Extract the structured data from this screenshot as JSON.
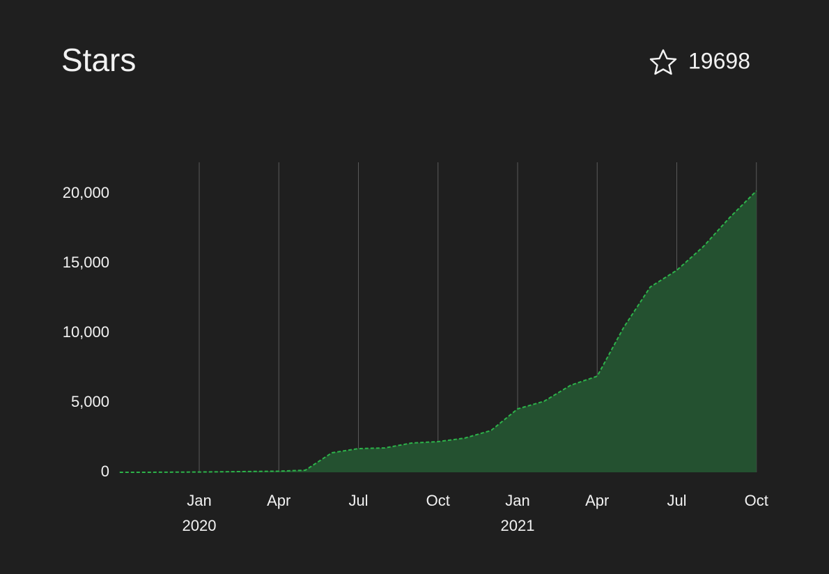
{
  "header": {
    "title": "Stars",
    "count": 19698
  },
  "chart_data": {
    "type": "area",
    "x": [
      "2019-10",
      "2019-11",
      "2019-12",
      "2020-01",
      "2020-02",
      "2020-03",
      "2020-04",
      "2020-05",
      "2020-06",
      "2020-07",
      "2020-08",
      "2020-09",
      "2020-10",
      "2020-11",
      "2020-12",
      "2021-01",
      "2021-02",
      "2021-03",
      "2021-04",
      "2021-05",
      "2021-06",
      "2021-07",
      "2021-08",
      "2021-09",
      "2021-10"
    ],
    "series": [
      {
        "color": "#2db34a",
        "fill": "#245130",
        "values": [
          0,
          0,
          10,
          20,
          40,
          60,
          80,
          150,
          1400,
          1700,
          1750,
          2100,
          2200,
          2450,
          3000,
          4550,
          5100,
          6250,
          6900,
          10400,
          13300,
          14500,
          16200,
          18300,
          20200
        ]
      }
    ],
    "xlim": [
      "2019-10",
      "2021-10"
    ],
    "xticks": [
      {
        "value": "2020-01",
        "label": "Jan",
        "year": "2020"
      },
      {
        "value": "2020-04",
        "label": "Apr"
      },
      {
        "value": "2020-07",
        "label": "Jul"
      },
      {
        "value": "2020-10",
        "label": "Oct"
      },
      {
        "value": "2021-01",
        "label": "Jan",
        "year": "2021"
      },
      {
        "value": "2021-04",
        "label": "Apr"
      },
      {
        "value": "2021-07",
        "label": "Jul"
      },
      {
        "value": "2021-10",
        "label": "Oct"
      }
    ],
    "ylim": [
      0,
      22250
    ],
    "yticks": [
      0,
      {
        "value": 5000,
        "label": "5,000"
      },
      {
        "value": 10000,
        "label": "10,000"
      },
      {
        "value": 15000,
        "label": "15,000"
      },
      {
        "value": 20000,
        "label": "20,000"
      }
    ],
    "grid": "x"
  }
}
